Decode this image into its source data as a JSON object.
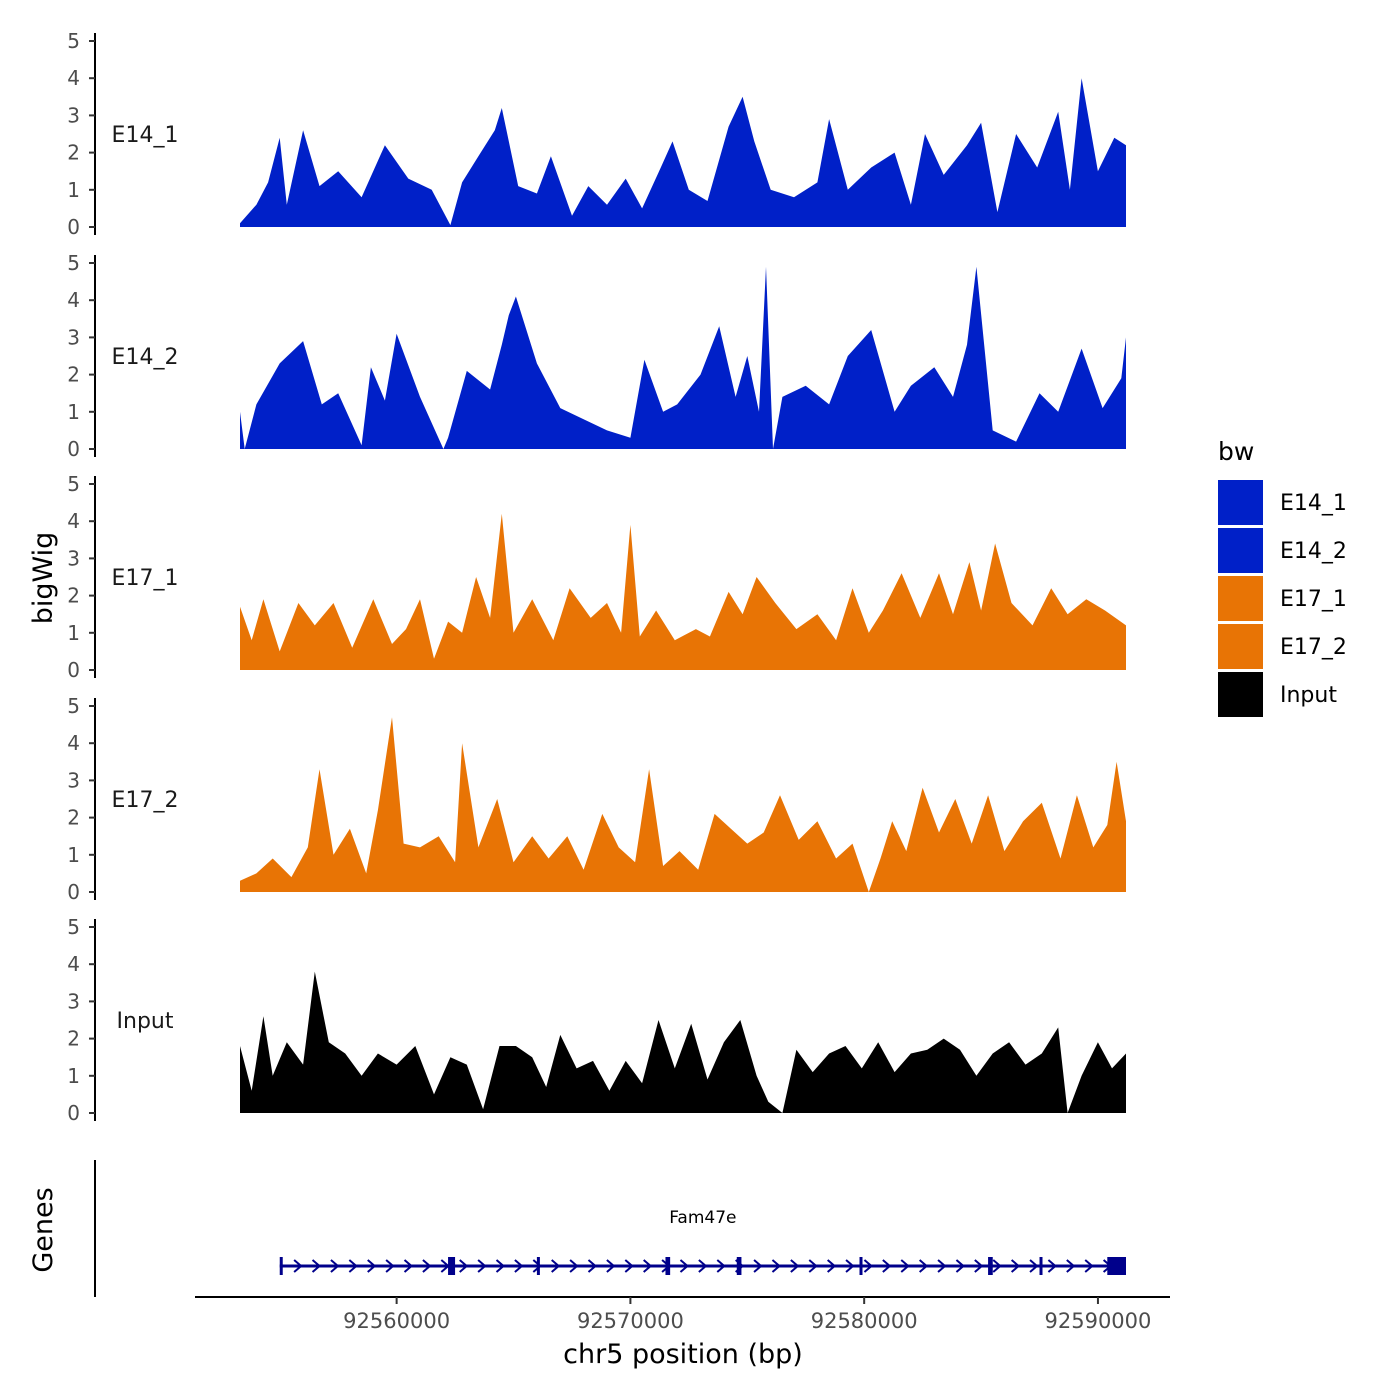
{
  "chart_data": {
    "type": "area",
    "title": "",
    "xlabel": "chr5 position (bp)",
    "ylabel": "bigWig",
    "ylim": [
      0,
      5
    ],
    "y_ticks": [
      0,
      1,
      2,
      3,
      4,
      5
    ],
    "x_range": [
      92553300,
      92591200
    ],
    "x_ticks": [
      92560000,
      92570000,
      92580000,
      92590000
    ],
    "x_tick_labels": [
      "92560000",
      "92570000",
      "92580000",
      "92590000"
    ],
    "legend": {
      "title": "bw",
      "position": "right",
      "entries": [
        {
          "label": "E14_1",
          "color": "#0020c8"
        },
        {
          "label": "E14_2",
          "color": "#0020c8"
        },
        {
          "label": "E17_1",
          "color": "#e87405"
        },
        {
          "label": "E17_2",
          "color": "#e87405"
        },
        {
          "label": "Input",
          "color": "#000000"
        }
      ]
    },
    "series": [
      {
        "name": "E14_1",
        "color": "#0020c8",
        "x": [
          92553300,
          92554000,
          92554500,
          92555000,
          92555300,
          92556000,
          92556700,
          92557500,
          92558500,
          92559500,
          92560500,
          92561500,
          92562300,
          92562800,
          92563500,
          92564200,
          92564500,
          92565200,
          92566000,
          92566600,
          92567500,
          92568200,
          92569000,
          92569800,
          92570500,
          92571300,
          92571800,
          92572500,
          92573300,
          92574200,
          92574800,
          92575300,
          92576000,
          92577000,
          92578000,
          92578500,
          92579300,
          92580300,
          92581300,
          92582000,
          92582600,
          92583400,
          92584400,
          92585000,
          92585700,
          92586500,
          92587400,
          92588300,
          92588800,
          92589300,
          92590000,
          92590700,
          92591200
        ],
        "values": [
          0.1,
          0.6,
          1.2,
          2.4,
          0.6,
          2.6,
          1.1,
          1.5,
          0.8,
          2.2,
          1.3,
          1.0,
          0.05,
          1.2,
          1.9,
          2.6,
          3.2,
          1.1,
          0.9,
          1.9,
          0.3,
          1.1,
          0.6,
          1.3,
          0.5,
          1.6,
          2.3,
          1.0,
          0.7,
          2.7,
          3.5,
          2.3,
          1.0,
          0.8,
          1.2,
          2.9,
          1.0,
          1.6,
          2.0,
          0.6,
          2.5,
          1.4,
          2.2,
          2.8,
          0.4,
          2.5,
          1.6,
          3.1,
          1.0,
          4.0,
          1.5,
          2.4,
          2.2
        ]
      },
      {
        "name": "E14_2",
        "color": "#0020c8",
        "x": [
          92553300,
          92553500,
          92554000,
          92555000,
          92556000,
          92556800,
          92557500,
          92558500,
          92558900,
          92559500,
          92560000,
          92561000,
          92562000,
          92562200,
          92563000,
          92564000,
          92564500,
          92564800,
          92565100,
          92566000,
          92567000,
          92568000,
          92569000,
          92570000,
          92570600,
          92571400,
          92572000,
          92573000,
          92573800,
          92574500,
          92575000,
          92575500,
          92575800,
          92576100,
          92576500,
          92577500,
          92578500,
          92579300,
          92580300,
          92581300,
          92582000,
          92583000,
          92583800,
          92584400,
          92584800,
          92585500,
          92586500,
          92587500,
          92588300,
          92589300,
          92590200,
          92591000,
          92591200
        ],
        "values": [
          1.0,
          0.0,
          1.2,
          2.3,
          2.9,
          1.2,
          1.5,
          0.1,
          2.2,
          1.3,
          3.1,
          1.4,
          0.0,
          0.3,
          2.1,
          1.6,
          2.8,
          3.6,
          4.1,
          2.3,
          1.1,
          0.8,
          0.5,
          0.3,
          2.4,
          1.0,
          1.2,
          2.0,
          3.3,
          1.4,
          2.5,
          1.0,
          4.9,
          0.0,
          1.4,
          1.7,
          1.2,
          2.5,
          3.2,
          1.0,
          1.7,
          2.2,
          1.4,
          2.8,
          4.9,
          0.5,
          0.2,
          1.5,
          1.0,
          2.7,
          1.1,
          1.9,
          3.0
        ]
      },
      {
        "name": "E17_1",
        "color": "#e87405",
        "x": [
          92553300,
          92553800,
          92554300,
          92555000,
          92555800,
          92556500,
          92557300,
          92558100,
          92559000,
          92559800,
          92560400,
          92561000,
          92561600,
          92562200,
          92562800,
          92563400,
          92564000,
          92564500,
          92565000,
          92565800,
          92566700,
          92567400,
          92568300,
          92569000,
          92569600,
          92570000,
          92570400,
          92571100,
          92571900,
          92572800,
          92573400,
          92574200,
          92574800,
          92575400,
          92576200,
          92577100,
          92578000,
          92578800,
          92579500,
          92580200,
          92580800,
          92581600,
          92582400,
          92583200,
          92583800,
          92584500,
          92585000,
          92585600,
          92586300,
          92587200,
          92588000,
          92588700,
          92589500,
          92590300,
          92591200
        ],
        "values": [
          1.7,
          0.8,
          1.9,
          0.5,
          1.8,
          1.2,
          1.8,
          0.6,
          1.9,
          0.7,
          1.1,
          1.9,
          0.3,
          1.3,
          1.0,
          2.5,
          1.4,
          4.2,
          1.0,
          1.9,
          0.8,
          2.2,
          1.4,
          1.8,
          1.0,
          3.9,
          0.9,
          1.6,
          0.8,
          1.1,
          0.9,
          2.1,
          1.5,
          2.5,
          1.8,
          1.1,
          1.5,
          0.8,
          2.2,
          1.0,
          1.6,
          2.6,
          1.4,
          2.6,
          1.5,
          2.9,
          1.6,
          3.4,
          1.8,
          1.2,
          2.2,
          1.5,
          1.9,
          1.6,
          1.2
        ]
      },
      {
        "name": "E17_2",
        "color": "#e87405",
        "x": [
          92553300,
          92554000,
          92554700,
          92555500,
          92556200,
          92556700,
          92557300,
          92558000,
          92558700,
          92559200,
          92559800,
          92560300,
          92561000,
          92561800,
          92562500,
          92562800,
          92563500,
          92564300,
          92565000,
          92565800,
          92566500,
          92567300,
          92568000,
          92568800,
          92569500,
          92570200,
          92570800,
          92571400,
          92572100,
          92572900,
          92573600,
          92574300,
          92575000,
          92575700,
          92576400,
          92577200,
          92578000,
          92578800,
          92579500,
          92580200,
          92580700,
          92581200,
          92581800,
          92582500,
          92583200,
          92583900,
          92584600,
          92585300,
          92586000,
          92586800,
          92587600,
          92588400,
          92589100,
          92589800,
          92590400,
          92590800,
          92591200
        ],
        "values": [
          0.3,
          0.5,
          0.9,
          0.4,
          1.2,
          3.3,
          1.0,
          1.7,
          0.5,
          2.2,
          4.7,
          1.3,
          1.2,
          1.5,
          0.8,
          4.0,
          1.2,
          2.5,
          0.8,
          1.5,
          0.9,
          1.5,
          0.6,
          2.1,
          1.2,
          0.8,
          3.3,
          0.7,
          1.1,
          0.6,
          2.1,
          1.7,
          1.3,
          1.6,
          2.6,
          1.4,
          1.9,
          0.9,
          1.3,
          0.0,
          0.9,
          1.9,
          1.1,
          2.8,
          1.6,
          2.5,
          1.3,
          2.6,
          1.1,
          1.9,
          2.4,
          0.9,
          2.6,
          1.2,
          1.8,
          3.5,
          1.9
        ]
      },
      {
        "name": "Input",
        "color": "#000000",
        "x": [
          92553300,
          92553800,
          92554300,
          92554700,
          92555300,
          92556000,
          92556500,
          92557100,
          92557800,
          92558500,
          92559200,
          92560000,
          92560800,
          92561600,
          92562300,
          92563000,
          92563700,
          92564400,
          92565100,
          92565800,
          92566400,
          92567000,
          92567700,
          92568400,
          92569100,
          92569800,
          92570500,
          92571200,
          92571900,
          92572600,
          92573300,
          92574000,
          92574700,
          92575400,
          92575900,
          92576500,
          92577100,
          92577800,
          92578500,
          92579200,
          92579900,
          92580600,
          92581300,
          92582000,
          92582700,
          92583400,
          92584100,
          92584800,
          92585500,
          92586200,
          92586900,
          92587600,
          92588300,
          92588700,
          92589300,
          92590000,
          92590600,
          92591200
        ],
        "values": [
          1.8,
          0.6,
          2.6,
          1.0,
          1.9,
          1.3,
          3.8,
          1.9,
          1.6,
          1.0,
          1.6,
          1.3,
          1.8,
          0.5,
          1.5,
          1.3,
          0.1,
          1.8,
          1.8,
          1.5,
          0.7,
          2.1,
          1.2,
          1.4,
          0.6,
          1.4,
          0.8,
          2.5,
          1.2,
          2.4,
          0.9,
          1.9,
          2.5,
          1.0,
          0.3,
          0.0,
          1.7,
          1.1,
          1.6,
          1.8,
          1.2,
          1.9,
          1.1,
          1.6,
          1.7,
          2.0,
          1.7,
          1.0,
          1.6,
          1.9,
          1.3,
          1.6,
          2.3,
          0.0,
          1.0,
          1.9,
          1.2,
          1.6
        ]
      }
    ],
    "genes": {
      "label": "Genes",
      "name": "Fam47e",
      "color": "#00008b",
      "start": 92555000,
      "end": 92591200,
      "exons": [
        {
          "start": 92555000,
          "end": 92555100
        },
        {
          "start": 92562200,
          "end": 92562500
        },
        {
          "start": 92566000,
          "end": 92566100
        },
        {
          "start": 92571500,
          "end": 92571700
        },
        {
          "start": 92574550,
          "end": 92574750
        },
        {
          "start": 92579800,
          "end": 92579900
        },
        {
          "start": 92585300,
          "end": 92585500
        },
        {
          "start": 92587500,
          "end": 92587600
        },
        {
          "start": 92590400,
          "end": 92591200
        }
      ]
    }
  }
}
